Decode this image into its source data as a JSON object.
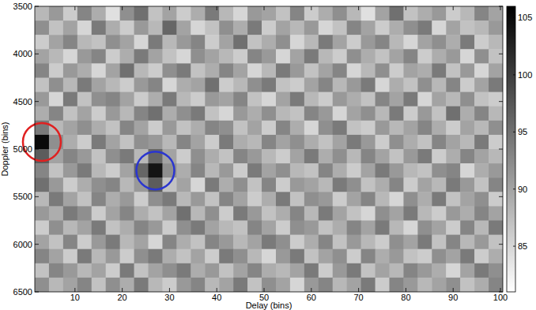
{
  "chart_data": {
    "type": "heatmap",
    "xlabel": "Delay (bins)",
    "ylabel": "Doppler (bins)",
    "xlim": [
      1.5,
      100.5
    ],
    "ylim": [
      3500,
      6500
    ],
    "xticks": [
      10,
      20,
      30,
      40,
      50,
      60,
      70,
      80,
      90,
      100
    ],
    "yticks": [
      3500,
      4000,
      4500,
      5000,
      5500,
      6000,
      6500
    ],
    "x": [
      3,
      6,
      9,
      12,
      15,
      18,
      21,
      24,
      27,
      30,
      33,
      36,
      39,
      42,
      45,
      48,
      51,
      54,
      57,
      60,
      63,
      66,
      69,
      72,
      75,
      78,
      81,
      84,
      87,
      90,
      93,
      96,
      99
    ],
    "y": [
      3575,
      3725,
      3875,
      4025,
      4175,
      4325,
      4475,
      4625,
      4775,
      4925,
      5075,
      5225,
      5375,
      5525,
      5675,
      5825,
      5975,
      6125,
      6275,
      6425
    ],
    "cells": [
      [
        88,
        91,
        86,
        93,
        89,
        84,
        92,
        95,
        87,
        90,
        86,
        89,
        94,
        88,
        85,
        91,
        90,
        87,
        93,
        86,
        89,
        92,
        88,
        84,
        90,
        95,
        87,
        89,
        91,
        86,
        88,
        93,
        90
      ],
      [
        92,
        87,
        90,
        85,
        94,
        89,
        86,
        91,
        88,
        96,
        90,
        85,
        87,
        92,
        89,
        94,
        86,
        90,
        88,
        91,
        85,
        87,
        93,
        90,
        86,
        89,
        92,
        94,
        85,
        90,
        87,
        88,
        91
      ],
      [
        86,
        90,
        93,
        88,
        87,
        92,
        90,
        85,
        94,
        88,
        91,
        93,
        86,
        90,
        95,
        87,
        89,
        92,
        85,
        88,
        94,
        90,
        86,
        91,
        93,
        88,
        85,
        90,
        92,
        89,
        94,
        86,
        88
      ],
      [
        90,
        88,
        85,
        91,
        93,
        86,
        89,
        94,
        90,
        87,
        85,
        92,
        90,
        88,
        86,
        93,
        91,
        85,
        90,
        94,
        88,
        86,
        92,
        89,
        87,
        90,
        93,
        86,
        89,
        91,
        85,
        92,
        87
      ],
      [
        93,
        86,
        91,
        89,
        85,
        90,
        95,
        88,
        86,
        92,
        94,
        87,
        89,
        93,
        90,
        85,
        88,
        94,
        91,
        87,
        90,
        93,
        85,
        88,
        92,
        86,
        90,
        89,
        94,
        87,
        91,
        85,
        90
      ],
      [
        87,
        92,
        88,
        94,
        90,
        88,
        86,
        91,
        93,
        85,
        89,
        90,
        95,
        86,
        88,
        92,
        94,
        87,
        86,
        90,
        93,
        88,
        91,
        94,
        85,
        89,
        87,
        92,
        88,
        93,
        86,
        90,
        94
      ],
      [
        91,
        85,
        94,
        87,
        92,
        93,
        90,
        86,
        89,
        94,
        88,
        86,
        91,
        90,
        93,
        87,
        85,
        90,
        94,
        88,
        86,
        91,
        89,
        87,
        93,
        90,
        94,
        85,
        90,
        88,
        92,
        87,
        86
      ],
      [
        89,
        93,
        87,
        90,
        86,
        91,
        88,
        93,
        95,
        89,
        92,
        94,
        87,
        85,
        91,
        89,
        92,
        88,
        87,
        93,
        91,
        85,
        90,
        92,
        88,
        94,
        86,
        91,
        87,
        95,
        89,
        93,
        88
      ],
      [
        94,
        88,
        90,
        92,
        89,
        87,
        93,
        90,
        86,
        91,
        87,
        89,
        93,
        92,
        87,
        90,
        86,
        93,
        89,
        85,
        92,
        94,
        87,
        86,
        91,
        88,
        90,
        93,
        89,
        86,
        90,
        88,
        92
      ],
      [
        105,
        92,
        89,
        86,
        94,
        90,
        87,
        92,
        91,
        88,
        93,
        90,
        86,
        94,
        89,
        88,
        93,
        90,
        92,
        89,
        87,
        90,
        94,
        91,
        86,
        92,
        89,
        87,
        93,
        90,
        88,
        94,
        86
      ],
      [
        97,
        90,
        93,
        91,
        87,
        92,
        94,
        88,
        96,
        90,
        86,
        92,
        89,
        87,
        93,
        91,
        88,
        86,
        90,
        94,
        89,
        92,
        88,
        93,
        90,
        87,
        91,
        94,
        86,
        89,
        93,
        90,
        88
      ],
      [
        93,
        87,
        91,
        94,
        88,
        86,
        90,
        96,
        104,
        92,
        89,
        93,
        88,
        91,
        86,
        94,
        90,
        92,
        88,
        87,
        93,
        89,
        86,
        90,
        94,
        91,
        88,
        87,
        92,
        93,
        85,
        89,
        91
      ],
      [
        95,
        91,
        86,
        89,
        92,
        93,
        88,
        91,
        97,
        87,
        90,
        85,
        94,
        89,
        92,
        87,
        93,
        86,
        91,
        90,
        88,
        94,
        92,
        87,
        89,
        93,
        86,
        90,
        88,
        94,
        91,
        87,
        93
      ],
      [
        88,
        94,
        90,
        87,
        93,
        89,
        91,
        86,
        92,
        94,
        88,
        91,
        87,
        93,
        90,
        86,
        89,
        94,
        87,
        92,
        91,
        86,
        90,
        93,
        88,
        85,
        92,
        89,
        94,
        87,
        90,
        92,
        86
      ],
      [
        91,
        89,
        94,
        92,
        86,
        90,
        93,
        89,
        87,
        90,
        95,
        88,
        92,
        86,
        94,
        91,
        87,
        89,
        93,
        88,
        94,
        90,
        87,
        85,
        92,
        90,
        94,
        88,
        86,
        91,
        89,
        93,
        90
      ],
      [
        86,
        92,
        88,
        90,
        94,
        87,
        89,
        93,
        91,
        86,
        92,
        94,
        90,
        88,
        87,
        93,
        90,
        86,
        92,
        91,
        87,
        89,
        93,
        90,
        94,
        88,
        85,
        92,
        90,
        86,
        93,
        88,
        94
      ],
      [
        90,
        87,
        93,
        86,
        91,
        94,
        88,
        90,
        85,
        93,
        89,
        87,
        93,
        91,
        88,
        90,
        94,
        92,
        86,
        89,
        93,
        87,
        91,
        88,
        86,
        92,
        90,
        94,
        87,
        93,
        88,
        91,
        87
      ],
      [
        93,
        90,
        86,
        94,
        88,
        91,
        86,
        92,
        94,
        89,
        87,
        90,
        86,
        94,
        92,
        88,
        85,
        91,
        94,
        87,
        90,
        92,
        86,
        93,
        89,
        91,
        87,
        86,
        92,
        90,
        94,
        86,
        89
      ],
      [
        87,
        93,
        91,
        88,
        90,
        86,
        94,
        87,
        90,
        92,
        94,
        89,
        91,
        87,
        90,
        93,
        89,
        88,
        90,
        94,
        86,
        91,
        94,
        87,
        90,
        88,
        93,
        91,
        89,
        85,
        90,
        94,
        92
      ],
      [
        92,
        88,
        90,
        93,
        87,
        92,
        89,
        94,
        88,
        86,
        91,
        93,
        88,
        90,
        94,
        87,
        92,
        90,
        85,
        91,
        93,
        88,
        90,
        94,
        86,
        93,
        91,
        88,
        90,
        92,
        87,
        89,
        93
      ]
    ],
    "colorbar": {
      "range": [
        81,
        106
      ],
      "ticks": [
        85,
        90,
        95,
        100,
        105
      ]
    }
  }
}
